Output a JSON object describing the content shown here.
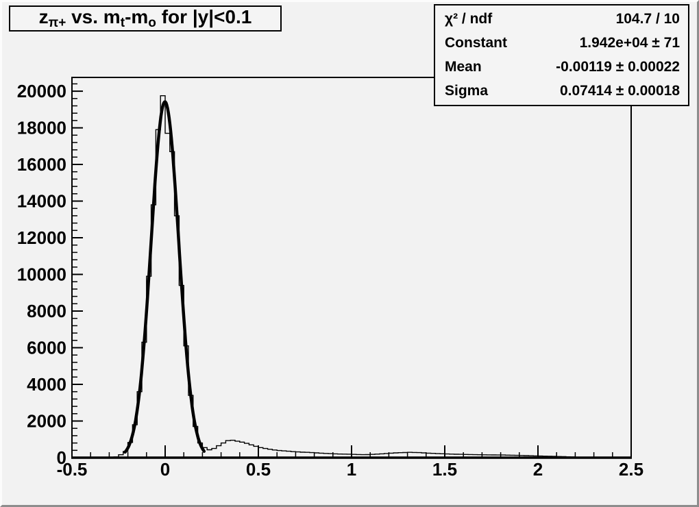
{
  "title_box": {
    "parts": [
      {
        "text": "z",
        "sub": "π+"
      },
      {
        "text": " vs. m",
        "sub": "t"
      },
      {
        "text": "-m",
        "sub": "o"
      },
      {
        "text": " for |y|<0.1",
        "sub": ""
      }
    ]
  },
  "stats_box": {
    "rows": [
      {
        "label": "χ² / ndf",
        "value": "104.7 / 10"
      },
      {
        "label": "Constant",
        "value": "1.942e+04 ± 71"
      },
      {
        "label": "Mean",
        "value": "-0.00119 ± 0.00022"
      },
      {
        "label": "Sigma",
        "value": "0.07414 ± 0.00018"
      }
    ]
  },
  "chart_data": {
    "type": "bar",
    "subtype": "histogram-with-gaussian-fit",
    "title": "z_{π+} vs. m_t-m_o for |y|<0.1",
    "xlabel": "",
    "ylabel": "",
    "xlim": [
      -0.5,
      2.5
    ],
    "ylim": [
      0,
      20750
    ],
    "x_major_ticks": [
      -0.5,
      0,
      0.5,
      1,
      1.5,
      2,
      2.5
    ],
    "x_tick_labels": [
      "-0.5",
      "0",
      "0.5",
      "1",
      "1.5",
      "2",
      "2.5"
    ],
    "x_minor_step": 0.1,
    "y_major_ticks": [
      0,
      2000,
      4000,
      6000,
      8000,
      10000,
      12000,
      14000,
      16000,
      18000,
      20000
    ],
    "y_tick_labels": [
      "0",
      "2000",
      "4000",
      "6000",
      "8000",
      "10000",
      "12000",
      "14000",
      "16000",
      "18000",
      "20000"
    ],
    "y_minor_step": 400,
    "grid": false,
    "legend": false,
    "bin_start": -0.5,
    "bin_width": 0.025,
    "bin_values": [
      0,
      0,
      0,
      0,
      0,
      0,
      0,
      0,
      0,
      40,
      160,
      340,
      830,
      1800,
      3600,
      6300,
      9900,
      13800,
      17900,
      19750,
      17700,
      16700,
      13200,
      9400,
      6100,
      3400,
      1700,
      800,
      550,
      430,
      500,
      650,
      800,
      930,
      950,
      900,
      850,
      780,
      700,
      620,
      550,
      500,
      460,
      420,
      390,
      370,
      350,
      330,
      315,
      300,
      290,
      275,
      260,
      245,
      230,
      220,
      210,
      200,
      195,
      190,
      180,
      172,
      165,
      170,
      180,
      195,
      210,
      228,
      245,
      260,
      272,
      282,
      290,
      285,
      275,
      262,
      248,
      235,
      222,
      212,
      202,
      194,
      188,
      182,
      176,
      171,
      166,
      162,
      158,
      154,
      150,
      147,
      144,
      139,
      133,
      126,
      119,
      112,
      105,
      98,
      90,
      83,
      76,
      70,
      63,
      55,
      46,
      36,
      15,
      6,
      4,
      4,
      6,
      4,
      3,
      3,
      2,
      2,
      2,
      2
    ],
    "fit": {
      "type": "gaussian",
      "chi2": 104.7,
      "ndf": 10,
      "constant": 19420,
      "constant_err": 71,
      "mean": -0.00119,
      "mean_err": 0.00022,
      "sigma": 0.07414,
      "sigma_err": 0.00018,
      "draw_range": [
        -0.215,
        0.21
      ]
    },
    "colors": {
      "line": "#000000",
      "fit": "#000000",
      "frame": "#000000",
      "canvas_bg": "#f2f2f2",
      "box_bg": "#f4f4f4"
    }
  }
}
